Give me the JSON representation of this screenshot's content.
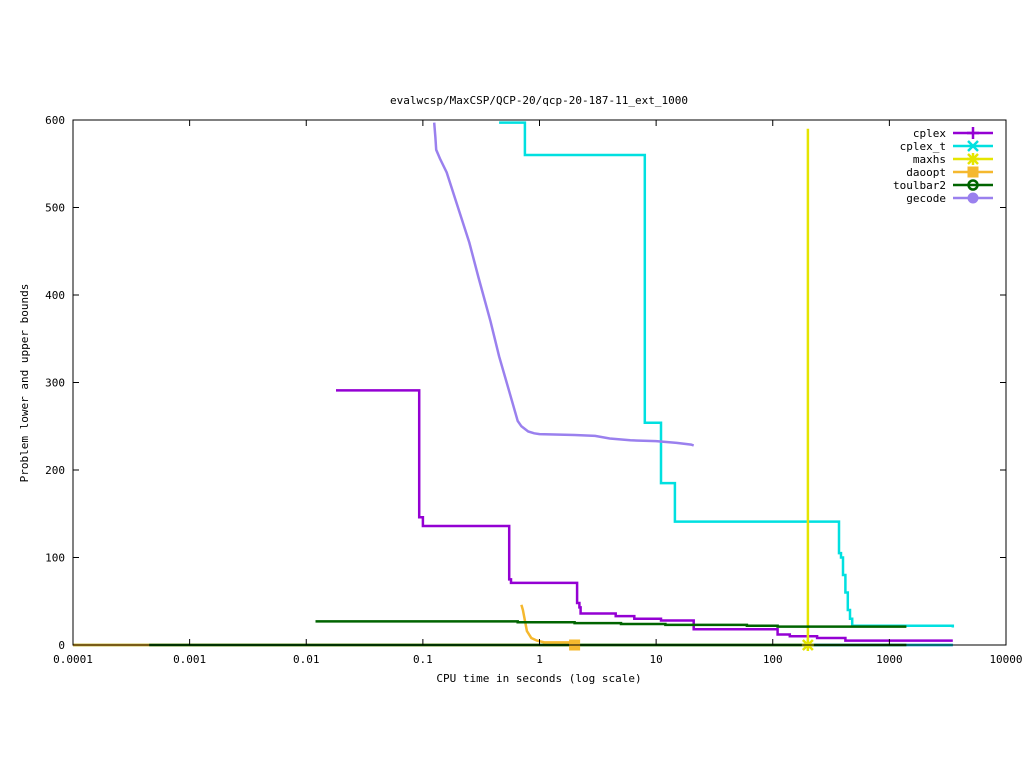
{
  "chart_data": {
    "type": "line",
    "title": "evalwcsp/MaxCSP/QCP-20/qcp-20-187-11_ext_1000",
    "xlabel": "CPU time in seconds (log scale)",
    "ylabel": "Problem lower and upper bounds",
    "xscale": "log",
    "xlim": [
      0.0001,
      10000
    ],
    "ylim": [
      0,
      600
    ],
    "x_ticks": [
      0.0001,
      0.001,
      0.01,
      0.1,
      1,
      10,
      100,
      1000,
      10000
    ],
    "x_tick_labels": [
      "0.0001",
      "0.001",
      "0.01",
      "0.1",
      "1",
      "10",
      "100",
      "1000",
      "10000"
    ],
    "y_ticks": [
      0,
      100,
      200,
      300,
      400,
      500,
      600
    ],
    "y_tick_labels": [
      "0",
      "100",
      "200",
      "300",
      "400",
      "500",
      "600"
    ],
    "grid": false,
    "legend_position": "top-right",
    "series": [
      {
        "name": "cplex",
        "color": "#9400d3",
        "marker": "plus",
        "points": [
          [
            0.018,
            291
          ],
          [
            0.093,
            291
          ],
          [
            0.093,
            146
          ],
          [
            0.1,
            146
          ],
          [
            0.1,
            136
          ],
          [
            0.55,
            136
          ],
          [
            0.55,
            75
          ],
          [
            0.57,
            75
          ],
          [
            0.57,
            71
          ],
          [
            2.1,
            71
          ],
          [
            2.1,
            48
          ],
          [
            2.2,
            48
          ],
          [
            2.2,
            43
          ],
          [
            2.25,
            43
          ],
          [
            2.25,
            36
          ],
          [
            4.5,
            36
          ],
          [
            4.5,
            33
          ],
          [
            6.5,
            33
          ],
          [
            6.5,
            30
          ],
          [
            11,
            30
          ],
          [
            11,
            28
          ],
          [
            21,
            28
          ],
          [
            21,
            18
          ],
          [
            110,
            18
          ],
          [
            110,
            12
          ],
          [
            140,
            12
          ],
          [
            140,
            10
          ],
          [
            240,
            10
          ],
          [
            240,
            8
          ],
          [
            420,
            8
          ],
          [
            420,
            5
          ],
          [
            3500,
            5
          ]
        ],
        "lower_bound": [
          [
            0.0001,
            0
          ],
          [
            3500,
            0
          ]
        ]
      },
      {
        "name": "cplex_t",
        "color": "#00e0e0",
        "marker": "x",
        "points": [
          [
            0.45,
            597
          ],
          [
            0.75,
            597
          ],
          [
            0.75,
            560
          ],
          [
            8.0,
            560
          ],
          [
            8.0,
            254
          ],
          [
            11,
            254
          ],
          [
            11,
            185
          ],
          [
            14.5,
            185
          ],
          [
            14.5,
            141
          ],
          [
            370,
            141
          ],
          [
            370,
            105
          ],
          [
            385,
            105
          ],
          [
            385,
            100
          ],
          [
            400,
            100
          ],
          [
            400,
            80
          ],
          [
            420,
            80
          ],
          [
            420,
            60
          ],
          [
            440,
            60
          ],
          [
            440,
            40
          ],
          [
            460,
            40
          ],
          [
            460,
            30
          ],
          [
            480,
            30
          ],
          [
            480,
            22
          ],
          [
            3500,
            22
          ],
          [
            3500,
            20
          ]
        ],
        "lower_bound": [
          [
            0.0001,
            0
          ],
          [
            3500,
            0
          ]
        ]
      },
      {
        "name": "maxhs",
        "color": "#e5e500",
        "marker": "star",
        "points": [
          [
            200,
            590
          ],
          [
            200,
            5
          ]
        ],
        "lower_bound": [
          [
            0.0001,
            0
          ],
          [
            200,
            0
          ]
        ]
      },
      {
        "name": "daoopt",
        "color": "#f5b82e",
        "marker": "square",
        "points": [
          [
            0.7,
            46
          ],
          [
            0.72,
            40
          ],
          [
            0.75,
            28
          ],
          [
            0.78,
            16
          ],
          [
            0.85,
            8
          ],
          [
            0.95,
            5
          ],
          [
            1.1,
            3
          ],
          [
            2.0,
            3
          ]
        ],
        "lower_bound": [
          [
            0.0001,
            0
          ],
          [
            2.0,
            0
          ]
        ]
      },
      {
        "name": "toulbar2",
        "color": "#006400",
        "marker": "circle",
        "points": [
          [
            0.012,
            27
          ],
          [
            0.65,
            27
          ],
          [
            0.65,
            26
          ],
          [
            2.0,
            26
          ],
          [
            2.0,
            25
          ],
          [
            5.0,
            25
          ],
          [
            5.0,
            24
          ],
          [
            12,
            24
          ],
          [
            12,
            23
          ],
          [
            60,
            23
          ],
          [
            60,
            22
          ],
          [
            110,
            22
          ],
          [
            110,
            21
          ],
          [
            1400,
            21
          ]
        ],
        "lower_bound": [
          [
            0.00045,
            0
          ],
          [
            1400,
            0
          ]
        ]
      },
      {
        "name": "gecode",
        "color": "#9a80ee",
        "marker": "filled-circle",
        "points": [
          [
            0.125,
            597
          ],
          [
            0.128,
            580
          ],
          [
            0.13,
            566
          ],
          [
            0.14,
            556
          ],
          [
            0.16,
            540
          ],
          [
            0.2,
            500
          ],
          [
            0.25,
            460
          ],
          [
            0.3,
            420
          ],
          [
            0.38,
            370
          ],
          [
            0.45,
            330
          ],
          [
            0.55,
            290
          ],
          [
            0.65,
            256
          ],
          [
            0.7,
            250
          ],
          [
            0.8,
            244
          ],
          [
            0.9,
            242
          ],
          [
            1.0,
            241
          ],
          [
            2.0,
            240
          ],
          [
            3.0,
            239
          ],
          [
            4.0,
            236
          ],
          [
            6.0,
            234
          ],
          [
            10,
            233
          ],
          [
            15,
            231
          ],
          [
            20,
            229
          ],
          [
            21,
            228
          ]
        ]
      }
    ]
  }
}
